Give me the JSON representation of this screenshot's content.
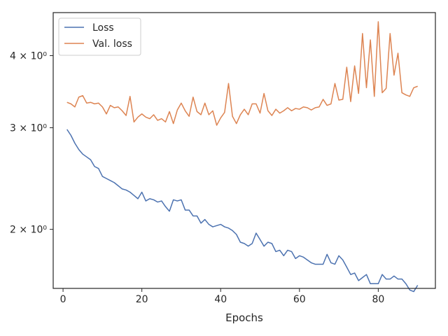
{
  "chart_data": {
    "type": "line",
    "xlabel": "Epochs",
    "ylabel": "",
    "yscale": "log",
    "xlim": [
      -2.5,
      94.5
    ],
    "ylim": [
      1.58,
      4.75
    ],
    "grid": false,
    "legend_position": "top-left",
    "x_ticks": [
      0,
      20,
      40,
      60,
      80
    ],
    "x_tick_labels": [
      "0",
      "20",
      "40",
      "60",
      "80"
    ],
    "y_ticks": [
      2,
      3,
      4
    ],
    "y_tick_labels": [
      "2 × 10⁰",
      "3 × 10⁰",
      "4 × 10⁰"
    ],
    "x": [
      1,
      2,
      3,
      4,
      5,
      6,
      7,
      8,
      9,
      10,
      11,
      12,
      13,
      14,
      15,
      16,
      17,
      18,
      19,
      20,
      21,
      22,
      23,
      24,
      25,
      26,
      27,
      28,
      29,
      30,
      31,
      32,
      33,
      34,
      35,
      36,
      37,
      38,
      39,
      40,
      41,
      42,
      43,
      44,
      45,
      46,
      47,
      48,
      49,
      50,
      51,
      52,
      53,
      54,
      55,
      56,
      57,
      58,
      59,
      60,
      61,
      62,
      63,
      64,
      65,
      66,
      67,
      68,
      69,
      70,
      71,
      72,
      73,
      74,
      75,
      76,
      77,
      78,
      79,
      80,
      81,
      82,
      83,
      84,
      85,
      86,
      87,
      88,
      89,
      90
    ],
    "series": [
      {
        "name": "Loss",
        "color": "#4c72b0",
        "values": [
          2.98,
          2.91,
          2.82,
          2.75,
          2.7,
          2.67,
          2.64,
          2.57,
          2.55,
          2.47,
          2.45,
          2.43,
          2.41,
          2.38,
          2.35,
          2.34,
          2.32,
          2.29,
          2.26,
          2.32,
          2.24,
          2.26,
          2.25,
          2.23,
          2.24,
          2.19,
          2.15,
          2.25,
          2.24,
          2.25,
          2.16,
          2.16,
          2.11,
          2.11,
          2.05,
          2.08,
          2.04,
          2.02,
          2.03,
          2.04,
          2.02,
          2.01,
          1.99,
          1.96,
          1.9,
          1.89,
          1.87,
          1.89,
          1.97,
          1.92,
          1.87,
          1.9,
          1.89,
          1.83,
          1.84,
          1.8,
          1.84,
          1.83,
          1.78,
          1.8,
          1.79,
          1.77,
          1.75,
          1.74,
          1.74,
          1.74,
          1.81,
          1.75,
          1.74,
          1.8,
          1.77,
          1.72,
          1.67,
          1.68,
          1.63,
          1.65,
          1.67,
          1.61,
          1.61,
          1.61,
          1.67,
          1.64,
          1.64,
          1.66,
          1.64,
          1.64,
          1.61,
          1.57,
          1.56,
          1.6
        ]
      },
      {
        "name": "Val. loss",
        "color": "#dd8452",
        "values": [
          3.32,
          3.3,
          3.26,
          3.39,
          3.41,
          3.31,
          3.32,
          3.3,
          3.31,
          3.26,
          3.17,
          3.28,
          3.25,
          3.26,
          3.21,
          3.15,
          3.4,
          3.07,
          3.13,
          3.17,
          3.13,
          3.11,
          3.16,
          3.09,
          3.11,
          3.07,
          3.2,
          3.05,
          3.22,
          3.31,
          3.21,
          3.14,
          3.39,
          3.2,
          3.16,
          3.31,
          3.16,
          3.21,
          3.03,
          3.12,
          3.19,
          3.58,
          3.14,
          3.05,
          3.16,
          3.23,
          3.16,
          3.3,
          3.3,
          3.18,
          3.44,
          3.21,
          3.15,
          3.23,
          3.18,
          3.21,
          3.25,
          3.21,
          3.24,
          3.23,
          3.26,
          3.25,
          3.22,
          3.25,
          3.26,
          3.36,
          3.28,
          3.3,
          3.58,
          3.35,
          3.36,
          3.82,
          3.33,
          3.84,
          3.44,
          4.37,
          3.52,
          4.26,
          3.4,
          4.58,
          3.45,
          3.51,
          4.37,
          3.7,
          4.04,
          3.45,
          3.42,
          3.4,
          3.52,
          3.54
        ]
      }
    ]
  }
}
